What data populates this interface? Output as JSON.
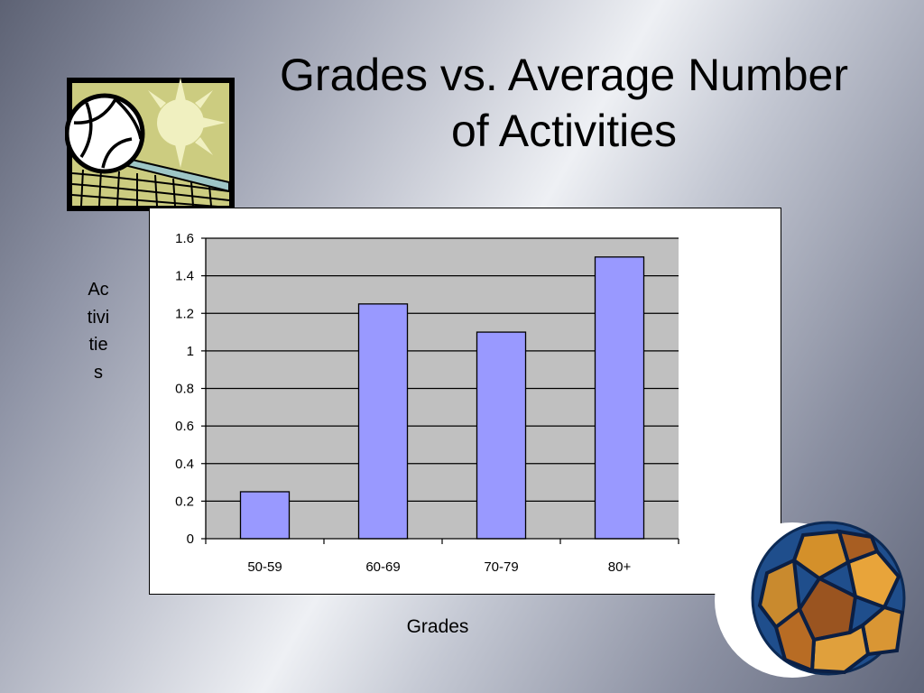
{
  "title": {
    "line1": "Grades vs. Average Number",
    "line2": "of Activities"
  },
  "icons": {
    "top_left": "volleyball-net-sun-icon",
    "bottom_right": "soccer-ball-icon"
  },
  "colors": {
    "bar_fill": "#9999ff",
    "plot_background": "#c0c0c0"
  },
  "chart_data": {
    "type": "bar",
    "title": "",
    "xlabel": "Grades",
    "ylabel": "Activities",
    "categories": [
      "50-59",
      "60-69",
      "70-79",
      "80+"
    ],
    "values": [
      0.25,
      1.25,
      1.1,
      1.5
    ],
    "ylim": [
      0,
      1.6
    ],
    "yticks": [
      "0",
      "0.2",
      "0.4",
      "0.6",
      "0.8",
      "1",
      "1.2",
      "1.4",
      "1.6"
    ],
    "grid": true,
    "legend": "none"
  }
}
